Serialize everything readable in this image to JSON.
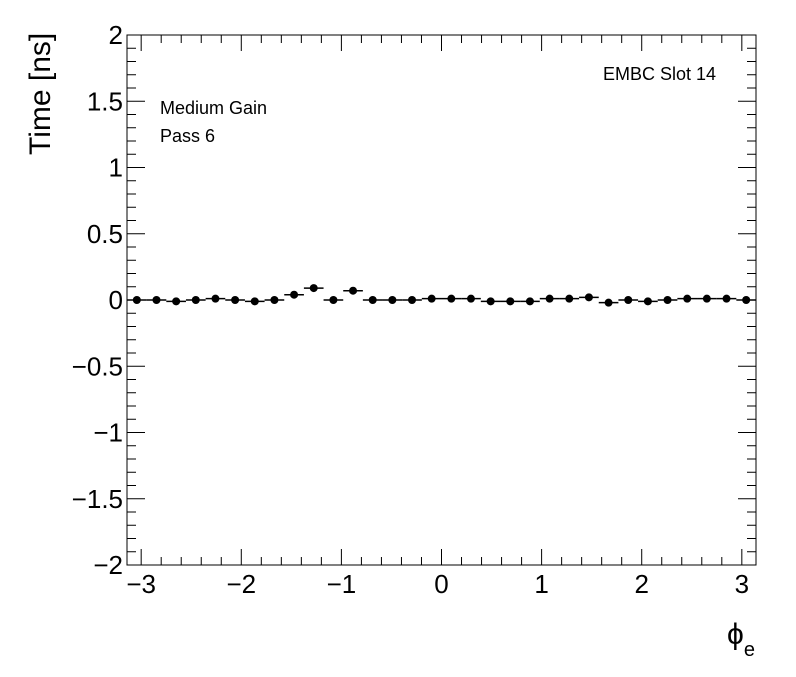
{
  "chart_data": {
    "type": "scatter",
    "title": "",
    "xlabel": "ϕ",
    "xlabel_subscript": "e",
    "ylabel": "Time [ns]",
    "xlim": [
      -3.1416,
      3.1416
    ],
    "ylim": [
      -2,
      2
    ],
    "x_ticks": [
      -3,
      -2,
      -1,
      0,
      1,
      2,
      3
    ],
    "x_tick_labels": [
      "−3",
      "−2",
      "−1",
      "0",
      "1",
      "2",
      "3"
    ],
    "y_ticks": [
      -2,
      -1.5,
      -1,
      -0.5,
      0,
      0.5,
      1,
      1.5,
      2
    ],
    "y_tick_labels": [
      "−2",
      "−1.5",
      "−1",
      "−0.5",
      "0",
      "0.5",
      "1",
      "1.5",
      "2"
    ],
    "grid": false,
    "legend": "none",
    "marker_color": "#000000",
    "annotations": {
      "slot": "EMBC Slot 14",
      "gain": "Medium Gain",
      "pass": "Pass 6"
    },
    "series": [
      {
        "x_bin_width": 0.19635,
        "x": [
          -3.0434,
          -2.8471,
          -2.6507,
          -2.4544,
          -2.258,
          -2.0617,
          -1.8653,
          -1.669,
          -1.4726,
          -1.2763,
          -1.0799,
          -0.8836,
          -0.6872,
          -0.4909,
          -0.2945,
          -0.0982,
          0.0982,
          0.2945,
          0.4909,
          0.6872,
          0.8836,
          1.0799,
          1.2763,
          1.4726,
          1.669,
          1.8653,
          2.0617,
          2.258,
          2.4544,
          2.6507,
          2.8471,
          3.0434
        ],
        "values": [
          0.0,
          0.0,
          -0.01,
          0.0,
          0.01,
          0.0,
          -0.01,
          0.0,
          0.04,
          0.09,
          0.0,
          0.07,
          0.0,
          0.0,
          0.0,
          0.01,
          0.01,
          0.01,
          -0.01,
          -0.01,
          -0.01,
          0.01,
          0.01,
          0.02,
          -0.02,
          0.0,
          -0.01,
          0.0,
          0.01,
          0.01,
          0.01,
          0.0
        ]
      }
    ]
  }
}
